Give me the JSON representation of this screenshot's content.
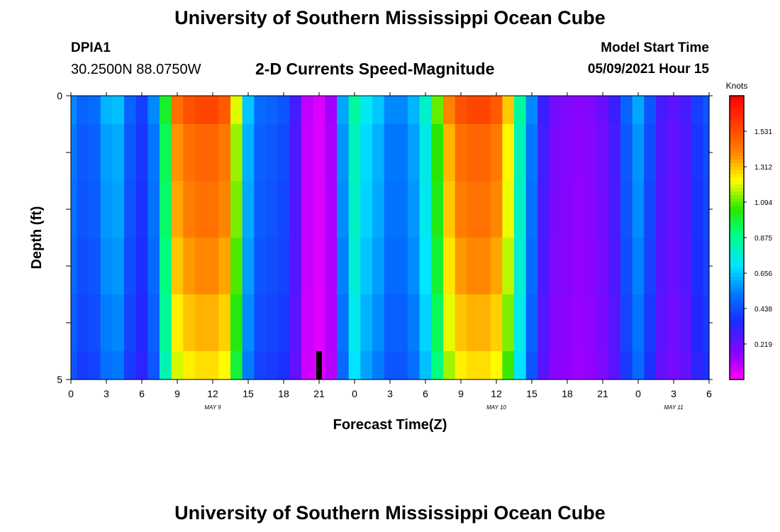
{
  "header": {
    "title": "University of Southern Mississippi Ocean Cube",
    "station_id": "DPIA1",
    "coordinates": "30.2500N  88.0750W",
    "subtitle": "2-D Currents Speed-Magnitude",
    "model_start_label": "Model Start Time",
    "model_start_value": "05/09/2021 Hour 15"
  },
  "footer": {
    "title": "University of Southern Mississippi Ocean Cube"
  },
  "chart_data": {
    "type": "heatmap",
    "title": "2-D Currents Speed-Magnitude",
    "xlabel": "Forecast Time(Z)",
    "ylabel": "Depth (ft)",
    "x_tick_labels": [
      "0",
      "3",
      "6",
      "9",
      "12",
      "15",
      "18",
      "21",
      "0",
      "3",
      "6",
      "9",
      "12",
      "15",
      "18",
      "21",
      "0",
      "3",
      "6"
    ],
    "x_hours_start": 0,
    "x_hours_end": 54,
    "date_labels": [
      {
        "text": "MAY 9",
        "hour": 12
      },
      {
        "text": "MAY 10",
        "hour": 36
      },
      {
        "text": "MAY 11",
        "hour": 51
      }
    ],
    "y_tick_labels": [
      {
        "text": "0",
        "depth": 0
      },
      {
        "text": "5",
        "depth": 5
      }
    ],
    "ylim": [
      0,
      5
    ],
    "depth_rows": [
      0.5,
      1.25,
      2.25,
      3.25,
      4.25,
      4.75
    ],
    "depth_edges": [
      0,
      0.5,
      1.5,
      2.5,
      3.5,
      4.5,
      5
    ],
    "colorbar": {
      "unit": "Knots",
      "min": 0.0,
      "max": 1.75,
      "tick_labels": [
        "1.531",
        "1.312",
        "1.094",
        "0.875",
        "0.656",
        "0.438",
        "0.219"
      ]
    },
    "speed_profile_by_hour": [
      0.55,
      0.48,
      0.5,
      0.62,
      0.64,
      0.48,
      0.4,
      0.55,
      1.0,
      1.45,
      1.52,
      1.55,
      1.55,
      1.5,
      1.2,
      0.65,
      0.5,
      0.48,
      0.45,
      0.28,
      0.08,
      0.05,
      0.12,
      0.6,
      0.85,
      0.72,
      0.65,
      0.55,
      0.55,
      0.62,
      0.78,
      1.1,
      1.4,
      1.52,
      1.55,
      1.55,
      1.5,
      1.3,
      0.85,
      0.55,
      0.3,
      0.2,
      0.18,
      0.16,
      0.18,
      0.22,
      0.3,
      0.48,
      0.6,
      0.45,
      0.28,
      0.24,
      0.28,
      0.4,
      0.45
    ],
    "depth_factor": [
      1.0,
      0.95,
      0.93,
      0.9,
      0.86,
      0.82
    ],
    "missing_cells": [
      {
        "hour": 21,
        "depth_from": 4.5,
        "depth_to": 5
      }
    ]
  }
}
